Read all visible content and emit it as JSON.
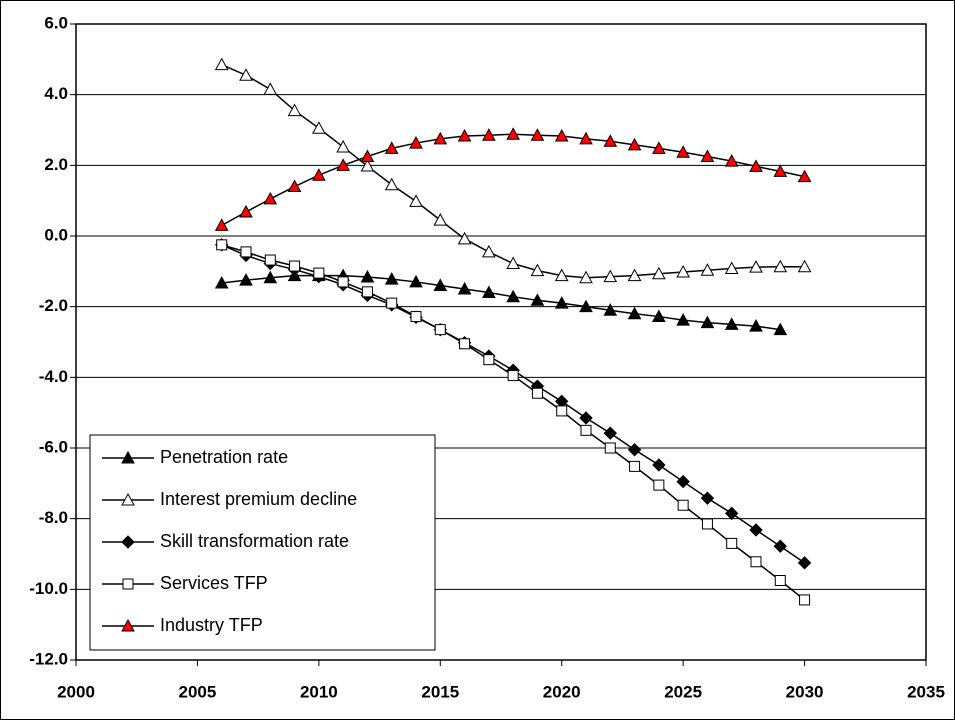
{
  "chart_data": {
    "type": "line",
    "x": [
      2006,
      2007,
      2008,
      2009,
      2010,
      2011,
      2012,
      2013,
      2014,
      2015,
      2016,
      2017,
      2018,
      2019,
      2020,
      2021,
      2022,
      2023,
      2024,
      2025,
      2026,
      2027,
      2028,
      2029,
      2030
    ],
    "series": [
      {
        "name": "Penetration rate",
        "color": "#000000",
        "marker": "triangle",
        "marker_fill": "#000000",
        "values": [
          -1.33,
          -1.25,
          -1.18,
          -1.12,
          -1.12,
          -1.12,
          -1.16,
          -1.22,
          -1.3,
          -1.4,
          -1.5,
          -1.6,
          -1.72,
          -1.82,
          -1.9,
          -2.0,
          -2.1,
          -2.2,
          -2.28,
          -2.38,
          -2.45,
          -2.5,
          -2.55,
          -2.65,
          null
        ]
      },
      {
        "name": "Interest premium decline",
        "color": "#000000",
        "marker": "triangle",
        "marker_fill": "#ffffff",
        "values": [
          4.85,
          4.55,
          4.15,
          3.55,
          3.05,
          2.52,
          1.98,
          1.45,
          0.98,
          0.45,
          -0.08,
          -0.45,
          -0.78,
          -0.98,
          -1.12,
          -1.18,
          -1.15,
          -1.12,
          -1.07,
          -1.02,
          -0.97,
          -0.92,
          -0.88,
          -0.87,
          -0.87
        ]
      },
      {
        "name": "Skill transformation rate",
        "color": "#000000",
        "marker": "diamond",
        "marker_fill": "#000000",
        "values": [
          -0.25,
          -0.55,
          -0.78,
          -0.95,
          -1.15,
          -1.38,
          -1.68,
          -1.95,
          -2.3,
          -2.65,
          -3.02,
          -3.4,
          -3.8,
          -4.25,
          -4.68,
          -5.15,
          -5.58,
          -6.05,
          -6.48,
          -6.95,
          -7.42,
          -7.85,
          -8.32,
          -8.78,
          -9.25
        ]
      },
      {
        "name": "Services TFP",
        "color": "#000000",
        "marker": "square",
        "marker_fill": "#ffffff",
        "values": [
          -0.25,
          -0.45,
          -0.68,
          -0.85,
          -1.05,
          -1.3,
          -1.58,
          -1.9,
          -2.28,
          -2.65,
          -3.05,
          -3.5,
          -3.95,
          -4.45,
          -4.95,
          -5.5,
          -6.0,
          -6.52,
          -7.05,
          -7.62,
          -8.15,
          -8.7,
          -9.22,
          -9.75,
          -10.3
        ]
      },
      {
        "name": "Industry TFP",
        "color": "#000000",
        "marker": "triangle",
        "marker_fill": "#ff0000",
        "values": [
          0.3,
          0.68,
          1.05,
          1.4,
          1.72,
          2.0,
          2.25,
          2.48,
          2.63,
          2.75,
          2.83,
          2.85,
          2.88,
          2.85,
          2.83,
          2.75,
          2.68,
          2.58,
          2.48,
          2.37,
          2.25,
          2.12,
          1.97,
          1.83,
          1.68
        ]
      }
    ],
    "xlim": [
      2000,
      2035
    ],
    "xticks": [
      2000,
      2005,
      2010,
      2015,
      2020,
      2025,
      2030,
      2035
    ],
    "ylim": [
      -12,
      6
    ],
    "yticks": [
      {
        "value": -12,
        "label": "-12.0"
      },
      {
        "value": -10,
        "label": "-10.0"
      },
      {
        "value": -8,
        "label": "-8.0"
      },
      {
        "value": -6,
        "label": "-6.0"
      },
      {
        "value": -4,
        "label": "-4.0"
      },
      {
        "value": -2,
        "label": "-2.0"
      },
      {
        "value": 0,
        "label": "0.0"
      },
      {
        "value": 2,
        "label": "2.0"
      },
      {
        "value": 4,
        "label": "4.0"
      },
      {
        "value": 6,
        "label": "6.0"
      }
    ],
    "grid": true,
    "legend": "lower left"
  }
}
